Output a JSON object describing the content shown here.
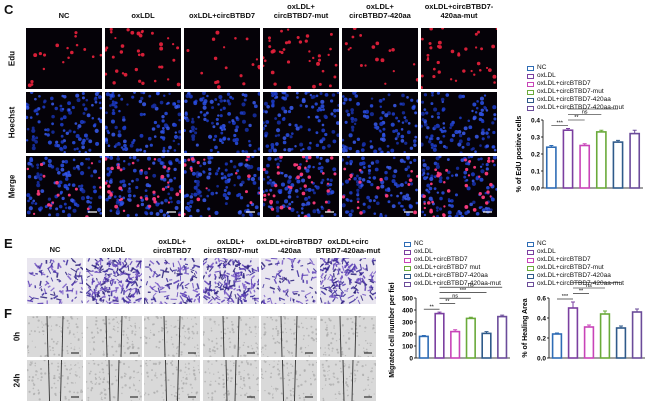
{
  "panel_c": {
    "label": "C",
    "columns": [
      "NC",
      "oxLDL",
      "oxLDL+circBTBD7",
      "oxLDL+\ncircBTBD7-mut",
      "oxLDL+\ncircBTBD7-420aa",
      "oxLDL+circBTBD7-\n420aa-mut"
    ],
    "rows": [
      "Edu",
      "Hoechst",
      "Merge"
    ]
  },
  "panel_e": {
    "label": "E",
    "columns": [
      "NC",
      "oxLDL",
      "oxLDL+\ncircBTBD7",
      "oxLDL+\ncircBTBD7-mut",
      "oxLDL+circBTBD7\n-420aa",
      "oxLDL+circ\nBTBD7-420aa-mut"
    ]
  },
  "panel_f": {
    "label": "F",
    "rows": [
      "0h",
      "24h"
    ]
  },
  "legend_labels": [
    "NC",
    "oxLDL",
    "oxLDL+circBTBD7",
    "oxLDL+circBTBD7-mut",
    "oxLDL+circBTBD7-420aa",
    "oxLDL+circBTBD7-420aa-mut"
  ],
  "legend_labels_e": [
    "NC",
    "oxLDL",
    "oxLDL+circBTBD7",
    "oxLDL+circBTBD7 mut",
    "oxLDL+circBTBD7-420aa",
    "oxLDL+circBTBD7-420aa-mut"
  ],
  "colors": {
    "NC": "#2e6cb5",
    "oxLDL": "#7b3fa0",
    "circBTBD7": "#c844b8",
    "circBTBD7_mut": "#6aaa3a",
    "circBTBD7_420aa": "#2f5a8a",
    "circBTBD7_420aa_mut": "#6b4c9a"
  },
  "chart_data": [
    {
      "type": "bar",
      "categories": [
        "NC",
        "oxLDL",
        "oxLDL+circBTBD7",
        "oxLDL+circBTBD7-mut",
        "oxLDL+circBTBD7-420aa",
        "oxLDL+circBTBD7-420aa-mut"
      ],
      "values": [
        0.24,
        0.34,
        0.25,
        0.33,
        0.27,
        0.32
      ],
      "errors": [
        0.01,
        0.01,
        0.01,
        0.01,
        0.01,
        0.02
      ],
      "ylabel": "% of EdU positive cells",
      "ylim": [
        0,
        0.4
      ],
      "yticks": [
        "0.0",
        "0.1",
        "0.2",
        "0.3",
        "0.4"
      ],
      "significance": [
        "***",
        "**",
        "ns",
        "ns",
        "ns"
      ]
    },
    {
      "type": "bar",
      "categories": [
        "NC",
        "oxLDL",
        "oxLDL+circBTBD7",
        "oxLDL+circBTBD7 mut",
        "oxLDL+circBTBD7-420aa",
        "oxLDL+circBTBD7-420aa-mut"
      ],
      "values": [
        180,
        370,
        220,
        330,
        205,
        345
      ],
      "errors": [
        8,
        12,
        15,
        10,
        15,
        12
      ],
      "ylabel": "Migrated cell number per field",
      "ylim": [
        0,
        500
      ],
      "yticks": [
        "0",
        "100",
        "200",
        "300",
        "400",
        "500"
      ],
      "significance": [
        "**",
        "**",
        "ns",
        "***",
        "ns",
        "ns"
      ]
    },
    {
      "type": "bar",
      "categories": [
        "NC",
        "oxLDL",
        "oxLDL+circBTBD7",
        "oxLDL+circBTBD7-mut",
        "oxLDL+circBTBD7-420aa",
        "oxLDL+circBTBD7-420aa-mut"
      ],
      "values": [
        0.24,
        0.5,
        0.31,
        0.44,
        0.3,
        0.46
      ],
      "errors": [
        0.01,
        0.06,
        0.02,
        0.03,
        0.02,
        0.03
      ],
      "ylabel": "% of Healing Area",
      "ylim": [
        0,
        0.6
      ],
      "yticks": [
        "0.0",
        "0.2",
        "0.4",
        "0.6"
      ],
      "significance": [
        "***",
        "**",
        "ns",
        "**",
        "ns",
        "ns"
      ]
    }
  ]
}
